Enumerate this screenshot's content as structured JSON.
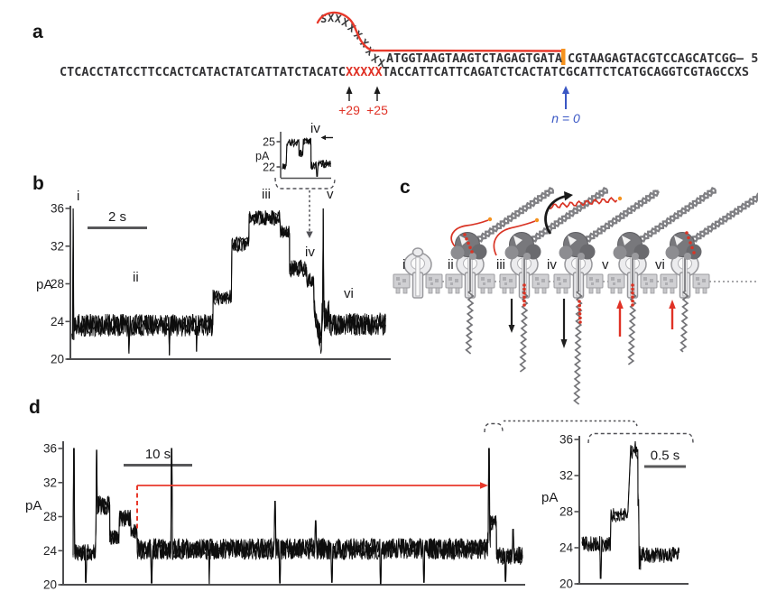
{
  "figure": {
    "panels": {
      "a": "a",
      "b": "b",
      "c": "c",
      "d": "d"
    }
  },
  "panel_a": {
    "curl": "SXXXXXXXXX",
    "top_left": "ATGGTAAGTAAGTCTAGAGTGATA",
    "top_right": "CGTAAGAGTACGTCCAGCATCGG– 5′",
    "bottom_pre": "CTCACCTATCCTTCCACTCATACTATCATTATCTACATC",
    "bottom_x": "XXXXX",
    "bottom_post": "TACCATTCATTCAGATCTCACTATCGCATTCTCATGCAGGTCGTAGCCXS",
    "label_plus29": "+29",
    "label_plus25": "+25",
    "label_n0": "n = 0",
    "colors": {
      "red": "#e03226",
      "orange": "#f5921e",
      "blue": "#3a57c4"
    }
  },
  "panel_c": {
    "stages": [
      {
        "label": "i",
        "enzyme": false,
        "duplex": false,
        "arrow": "none",
        "red": "none",
        "loop": false,
        "released": false
      },
      {
        "label": "ii",
        "enzyme": true,
        "duplex": true,
        "arrow": "none",
        "red": "enzyme",
        "loop": true,
        "released": false
      },
      {
        "label": "iii",
        "enzyme": true,
        "duplex": true,
        "arrow": "down-short",
        "red": "stem",
        "loop": true,
        "released": false
      },
      {
        "label": "iv",
        "enzyme": true,
        "duplex": true,
        "arrow": "down-long",
        "red": "ssdna",
        "loop": false,
        "released": true
      },
      {
        "label": "v",
        "enzyme": true,
        "duplex": true,
        "arrow": "up",
        "red": "stem",
        "loop": false,
        "released": false
      },
      {
        "label": "vi",
        "enzyme": true,
        "duplex": true,
        "arrow": "up-short",
        "red": "enzyme",
        "loop": false,
        "released": false
      }
    ]
  },
  "chart_data": [
    {
      "id": "b_main",
      "type": "line",
      "ylabel": "pA",
      "ylim": [
        20,
        36
      ],
      "yticks": [
        36,
        32,
        28,
        24,
        20
      ],
      "scalebar": {
        "label": "2 s",
        "seconds": 2
      },
      "stage_labels": [
        "i",
        "ii",
        "iii",
        "iv",
        "v",
        "vi"
      ],
      "segments": [
        {
          "t0": 0.05,
          "t1": 0.12,
          "pA": 22.0,
          "noise": 1.0
        },
        {
          "t0": 0.12,
          "t1": 4.79,
          "pA": 23.6,
          "noise": 1.2
        },
        {
          "t0": 4.79,
          "t1": 5.42,
          "pA": 26.6,
          "noise": 0.8
        },
        {
          "t0": 5.42,
          "t1": 6.0,
          "pA": 32.2,
          "noise": 0.9
        },
        {
          "t0": 6.0,
          "t1": 7.06,
          "pA": 35.0,
          "noise": 0.8
        },
        {
          "t0": 7.06,
          "t1": 7.36,
          "pA": 33.6,
          "noise": 0.7
        },
        {
          "t0": 7.36,
          "t1": 7.94,
          "pA": 29.6,
          "noise": 0.9
        },
        {
          "t0": 7.94,
          "t1": 8.18,
          "pA": 28.4,
          "noise": 0.8
        },
        {
          "t0": 8.18,
          "t1": 8.45,
          "ramp": [
            25.5,
            21.3
          ],
          "noise": 1.3
        },
        {
          "t0": 8.45,
          "t1": 8.7,
          "pA": 24.5,
          "noise": 1.8
        },
        {
          "t0": 8.7,
          "t1": 10.6,
          "pA": 23.7,
          "noise": 1.2
        }
      ],
      "spikes": [
        {
          "t": 0.09,
          "pA": 36.0
        },
        {
          "t": 1.97,
          "pA": 20.6
        },
        {
          "t": 3.33,
          "pA": 20.4
        },
        {
          "t": 4.24,
          "pA": 20.8
        },
        {
          "t": 8.49,
          "pA": 36.0
        }
      ]
    },
    {
      "id": "b_inset",
      "type": "line",
      "ylabel": "pA",
      "ylim": [
        21,
        26
      ],
      "yticks": [
        25,
        22
      ],
      "label": "iv",
      "segments": [
        {
          "t0": 0.0,
          "t1": 0.04,
          "pA": 22.2,
          "noise": 0.5
        },
        {
          "t0": 0.04,
          "t1": 0.15,
          "pA": 24.9,
          "noise": 0.45
        },
        {
          "t0": 0.15,
          "t1": 0.19,
          "pA": 23.6,
          "noise": 0.5
        },
        {
          "t0": 0.19,
          "t1": 0.26,
          "pA": 25.0,
          "noise": 0.45
        },
        {
          "t0": 0.26,
          "t1": 0.3,
          "pA": 22.1,
          "noise": 0.5
        },
        {
          "t0": 0.3,
          "t1": 0.44,
          "pA": 22.4,
          "noise": 0.5
        }
      ],
      "spikes": [
        {
          "t": 0.315,
          "pA": 20.9
        }
      ]
    },
    {
      "id": "d_main",
      "type": "line",
      "ylabel": "pA",
      "ylim": [
        20,
        36
      ],
      "yticks": [
        36,
        32,
        28,
        24,
        20
      ],
      "scalebar": {
        "label": "10 s",
        "seconds": 10
      },
      "segments": [
        {
          "t0": 1.45,
          "t1": 4.7,
          "pA": 23.8,
          "noise": 1.0
        },
        {
          "t0": 4.7,
          "t1": 4.9,
          "ramp": [
            23.8,
            29.3
          ],
          "noise": 1.0
        },
        {
          "t0": 4.9,
          "t1": 6.8,
          "pA": 29.3,
          "noise": 1.1
        },
        {
          "t0": 6.8,
          "t1": 8.2,
          "pA": 25.6,
          "noise": 0.9
        },
        {
          "t0": 8.2,
          "t1": 9.9,
          "pA": 27.8,
          "noise": 1.0
        },
        {
          "t0": 9.9,
          "t1": 10.8,
          "pA": 26.3,
          "noise": 0.9
        },
        {
          "t0": 10.8,
          "t1": 61.9,
          "pA": 24.2,
          "noise": 1.25
        },
        {
          "t0": 61.9,
          "t1": 62.3,
          "pA": 25.5,
          "noise": 1.2
        },
        {
          "t0": 62.3,
          "t1": 63.2,
          "pA": 27.3,
          "noise": 0.9
        },
        {
          "t0": 63.2,
          "t1": 67.0,
          "pA": 23.4,
          "noise": 1.1
        }
      ],
      "spikes": [
        {
          "t": 1.55,
          "pA": 36.0
        },
        {
          "t": 3.3,
          "pA": 20.3
        },
        {
          "t": 4.85,
          "pA": 35.8
        },
        {
          "t": 12.9,
          "pA": 20.2
        },
        {
          "t": 15.8,
          "pA": 36.0
        },
        {
          "t": 21.3,
          "pA": 20.1
        },
        {
          "t": 30.9,
          "pA": 29.8
        },
        {
          "t": 31.6,
          "pA": 20.2
        },
        {
          "t": 36.8,
          "pA": 27.5
        },
        {
          "t": 39.2,
          "pA": 20.3
        },
        {
          "t": 46.3,
          "pA": 20.1
        },
        {
          "t": 52.6,
          "pA": 20.3
        },
        {
          "t": 62.1,
          "pA": 36.0
        },
        {
          "t": 64.5,
          "pA": 20.4
        },
        {
          "t": 65.6,
          "pA": 26.5
        }
      ],
      "recapture_arrow": {
        "from_t": 10.8,
        "to_t": 61.3,
        "pA": 31.6,
        "color": "#e8392b"
      }
    },
    {
      "id": "d_inset",
      "type": "line",
      "ylabel": "pA",
      "ylim": [
        20,
        36
      ],
      "yticks": [
        36,
        32,
        28,
        24,
        20
      ],
      "scalebar": {
        "label": "0.5 s",
        "seconds": 0.5
      },
      "segments": [
        {
          "t0": 0.0,
          "t1": 0.34,
          "pA": 24.4,
          "noise": 0.9
        },
        {
          "t0": 0.34,
          "t1": 0.545,
          "pA": 27.6,
          "noise": 0.8
        },
        {
          "t0": 0.575,
          "t1": 0.66,
          "pA": 34.6,
          "noise": 0.9
        },
        {
          "t0": 0.66,
          "t1": 0.69,
          "ramp": [
            30.0,
            22.0
          ],
          "noise": 1.5
        },
        {
          "t0": 0.69,
          "t1": 1.15,
          "pA": 23.2,
          "noise": 0.9
        }
      ],
      "spikes": [
        {
          "t": 0.22,
          "pA": 20.6
        },
        {
          "t": 0.625,
          "pA": 35.8
        },
        {
          "t": 0.675,
          "pA": 21.6
        }
      ]
    }
  ]
}
